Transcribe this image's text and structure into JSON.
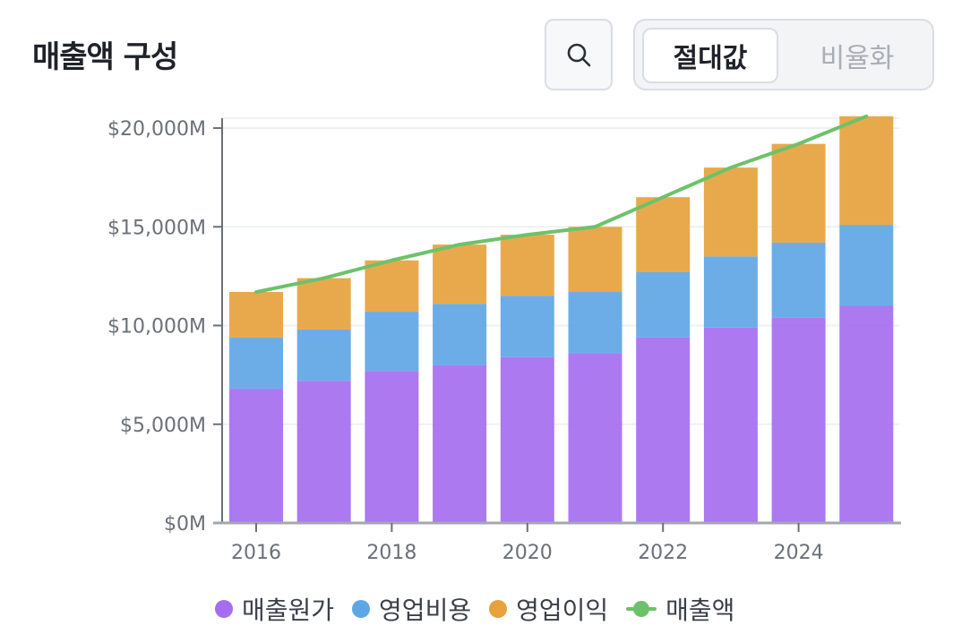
{
  "header": {
    "title": "매출액 구성",
    "search_icon": "search-icon",
    "toggle": {
      "absolute_label": "절대값",
      "ratio_label": "비율화",
      "selected": "absolute"
    }
  },
  "colors": {
    "cost": "#a56ef0",
    "opex": "#5fa6e6",
    "profit": "#e6a23e",
    "revenue": "#6cc26a",
    "axis": "#6b7078",
    "grid": "#eef0f3",
    "tick_text": "#6b7078"
  },
  "chart_data": {
    "type": "bar",
    "stacked": true,
    "title": "매출액 구성",
    "categories": [
      "2016",
      "2017",
      "2018",
      "2019",
      "2020",
      "2021",
      "2022",
      "2023",
      "2024",
      "2025"
    ],
    "series": [
      {
        "name": "매출원가",
        "kind": "bar",
        "color_key": "cost",
        "values": [
          6800,
          7200,
          7700,
          8000,
          8400,
          8600,
          9400,
          9900,
          10400,
          11000
        ]
      },
      {
        "name": "영업비용",
        "kind": "bar",
        "color_key": "opex",
        "values": [
          2600,
          2600,
          3000,
          3100,
          3100,
          3100,
          3300,
          3600,
          3800,
          4100
        ]
      },
      {
        "name": "영업이익",
        "kind": "bar",
        "color_key": "profit",
        "values": [
          2300,
          2600,
          2600,
          3000,
          3100,
          3300,
          3800,
          4500,
          5000,
          5500
        ]
      },
      {
        "name": "매출액",
        "kind": "line",
        "color_key": "revenue",
        "values": [
          11700,
          12400,
          13300,
          14100,
          14600,
          15000,
          16500,
          18000,
          19200,
          20600
        ]
      }
    ],
    "x_tick_labels": [
      "2016",
      "2018",
      "2020",
      "2022",
      "2024"
    ],
    "y_ticks": [
      0,
      5000,
      10000,
      15000,
      20000
    ],
    "y_tick_labels": [
      "$0M",
      "$5,000M",
      "$10,000M",
      "$15,000M",
      "$20,000M"
    ],
    "ylim": [
      0,
      20500
    ],
    "xlabel": "",
    "ylabel": "",
    "grid": true,
    "legend": {
      "position": "bottom",
      "entries": [
        "매출원가",
        "영업비용",
        "영업이익",
        "매출액"
      ]
    }
  }
}
